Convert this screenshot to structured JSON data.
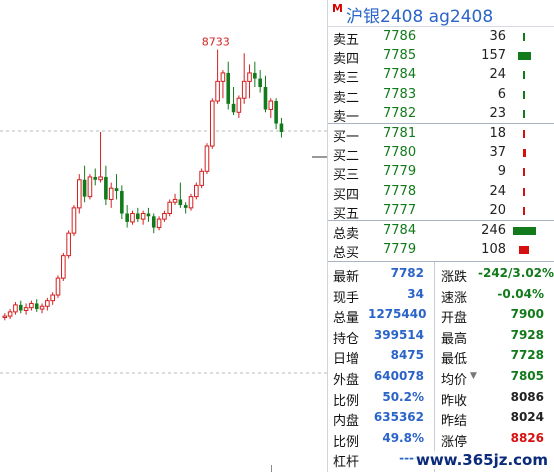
{
  "chart": {
    "high_label": "8733",
    "bull_color": "#d42020",
    "bear_color": "#127a1b",
    "grid_color": "#b8b8b8",
    "candles": [
      {
        "o": 7780,
        "h": 7795,
        "l": 7770,
        "c": 7785
      },
      {
        "o": 7785,
        "h": 7810,
        "l": 7775,
        "c": 7800
      },
      {
        "o": 7800,
        "h": 7835,
        "l": 7790,
        "c": 7825
      },
      {
        "o": 7825,
        "h": 7840,
        "l": 7795,
        "c": 7805
      },
      {
        "o": 7805,
        "h": 7830,
        "l": 7790,
        "c": 7815
      },
      {
        "o": 7815,
        "h": 7840,
        "l": 7805,
        "c": 7830
      },
      {
        "o": 7830,
        "h": 7845,
        "l": 7800,
        "c": 7810
      },
      {
        "o": 7810,
        "h": 7830,
        "l": 7795,
        "c": 7820
      },
      {
        "o": 7820,
        "h": 7850,
        "l": 7805,
        "c": 7840
      },
      {
        "o": 7840,
        "h": 7870,
        "l": 7825,
        "c": 7860
      },
      {
        "o": 7860,
        "h": 7930,
        "l": 7850,
        "c": 7920
      },
      {
        "o": 7920,
        "h": 8010,
        "l": 7910,
        "c": 8000
      },
      {
        "o": 8000,
        "h": 8090,
        "l": 7990,
        "c": 8080
      },
      {
        "o": 8080,
        "h": 8180,
        "l": 8070,
        "c": 8170
      },
      {
        "o": 8170,
        "h": 8290,
        "l": 8150,
        "c": 8270
      },
      {
        "o": 8270,
        "h": 8320,
        "l": 8190,
        "c": 8210
      },
      {
        "o": 8210,
        "h": 8290,
        "l": 8200,
        "c": 8280
      },
      {
        "o": 8280,
        "h": 8310,
        "l": 8250,
        "c": 8270
      },
      {
        "o": 8270,
        "h": 8440,
        "l": 8260,
        "c": 8280
      },
      {
        "o": 8280,
        "h": 8320,
        "l": 8180,
        "c": 8200
      },
      {
        "o": 8200,
        "h": 8260,
        "l": 8170,
        "c": 8240
      },
      {
        "o": 8240,
        "h": 8290,
        "l": 8200,
        "c": 8230
      },
      {
        "o": 8230,
        "h": 8250,
        "l": 8130,
        "c": 8150
      },
      {
        "o": 8150,
        "h": 8180,
        "l": 8100,
        "c": 8120
      },
      {
        "o": 8120,
        "h": 8160,
        "l": 8110,
        "c": 8150
      },
      {
        "o": 8150,
        "h": 8170,
        "l": 8120,
        "c": 8130
      },
      {
        "o": 8130,
        "h": 8160,
        "l": 8110,
        "c": 8150
      },
      {
        "o": 8150,
        "h": 8170,
        "l": 8120,
        "c": 8140
      },
      {
        "o": 8140,
        "h": 8150,
        "l": 8080,
        "c": 8100
      },
      {
        "o": 8100,
        "h": 8140,
        "l": 8090,
        "c": 8130
      },
      {
        "o": 8130,
        "h": 8160,
        "l": 8120,
        "c": 8150
      },
      {
        "o": 8150,
        "h": 8200,
        "l": 8140,
        "c": 8190
      },
      {
        "o": 8190,
        "h": 8220,
        "l": 8180,
        "c": 8200
      },
      {
        "o": 8200,
        "h": 8260,
        "l": 8170,
        "c": 8180
      },
      {
        "o": 8180,
        "h": 8190,
        "l": 8150,
        "c": 8170
      },
      {
        "o": 8170,
        "h": 8220,
        "l": 8160,
        "c": 8210
      },
      {
        "o": 8210,
        "h": 8260,
        "l": 8200,
        "c": 8250
      },
      {
        "o": 8250,
        "h": 8310,
        "l": 8240,
        "c": 8300
      },
      {
        "o": 8300,
        "h": 8400,
        "l": 8290,
        "c": 8390
      },
      {
        "o": 8390,
        "h": 8560,
        "l": 8380,
        "c": 8550
      },
      {
        "o": 8550,
        "h": 8733,
        "l": 8540,
        "c": 8620
      },
      {
        "o": 8620,
        "h": 8660,
        "l": 8560,
        "c": 8650
      },
      {
        "o": 8650,
        "h": 8690,
        "l": 8520,
        "c": 8540
      },
      {
        "o": 8540,
        "h": 8600,
        "l": 8500,
        "c": 8510
      },
      {
        "o": 8510,
        "h": 8570,
        "l": 8490,
        "c": 8560
      },
      {
        "o": 8560,
        "h": 8720,
        "l": 8540,
        "c": 8620
      },
      {
        "o": 8620,
        "h": 8680,
        "l": 8560,
        "c": 8650
      },
      {
        "o": 8650,
        "h": 8690,
        "l": 8600,
        "c": 8630
      },
      {
        "o": 8630,
        "h": 8660,
        "l": 8580,
        "c": 8600
      },
      {
        "o": 8600,
        "h": 8640,
        "l": 8510,
        "c": 8520
      },
      {
        "o": 8520,
        "h": 8560,
        "l": 8490,
        "c": 8550
      },
      {
        "o": 8550,
        "h": 8560,
        "l": 8450,
        "c": 8470
      },
      {
        "o": 8470,
        "h": 8490,
        "l": 8420,
        "c": 8440
      }
    ]
  },
  "title": {
    "badge": "M",
    "text": "沪银2408  ag2408"
  },
  "orderbook": {
    "asks": [
      {
        "label": "卖五",
        "price": "7786",
        "vol": "36",
        "bar": 0.1,
        "color": "#127a1b"
      },
      {
        "label": "卖四",
        "price": "7785",
        "vol": "157",
        "bar": 0.55,
        "color": "#127a1b"
      },
      {
        "label": "卖三",
        "price": "7784",
        "vol": "24",
        "bar": 0.06,
        "color": "#127a1b"
      },
      {
        "label": "卖二",
        "price": "7783",
        "vol": "6",
        "bar": 0.02,
        "color": "#127a1b"
      },
      {
        "label": "卖一",
        "price": "7782",
        "vol": "23",
        "bar": 0.06,
        "color": "#127a1b"
      }
    ],
    "bids": [
      {
        "label": "买一",
        "price": "7781",
        "vol": "18",
        "bar": 0.05,
        "color": "#d61010"
      },
      {
        "label": "买二",
        "price": "7780",
        "vol": "37",
        "bar": 0.11,
        "color": "#d61010"
      },
      {
        "label": "买三",
        "price": "7779",
        "vol": "9",
        "bar": 0.02,
        "color": "#d61010"
      },
      {
        "label": "买四",
        "price": "7778",
        "vol": "24",
        "bar": 0.06,
        "color": "#d61010"
      },
      {
        "label": "买五",
        "price": "7777",
        "vol": "20",
        "bar": 0.05,
        "color": "#d61010"
      }
    ],
    "totals": [
      {
        "label": "总卖",
        "price": "7784",
        "vol": "246",
        "bar": 0.95,
        "color": "#127a1b"
      },
      {
        "label": "总买",
        "price": "7779",
        "vol": "108",
        "bar": 0.4,
        "color": "#d61010"
      }
    ]
  },
  "quote": {
    "left": [
      {
        "label": "最新",
        "value": "7782"
      },
      {
        "label": "现手",
        "value": "34"
      },
      {
        "label": "总量",
        "value": "1275440"
      },
      {
        "label": "持仓",
        "value": "399514"
      },
      {
        "label": "日增",
        "value": "8475"
      },
      {
        "label": "外盘",
        "value": "640078"
      },
      {
        "label": "比例",
        "value": "50.2%"
      },
      {
        "label": "内盘",
        "value": "635362"
      },
      {
        "label": "比例",
        "value": "49.8%"
      },
      {
        "label": "杠杆",
        "value": "-----"
      }
    ],
    "right": [
      {
        "label": "涨跌",
        "value": "-242/3.02%",
        "tone": "green"
      },
      {
        "label": "速涨",
        "value": "-0.04%",
        "tone": "green"
      },
      {
        "label": "开盘",
        "value": "7900",
        "tone": "green"
      },
      {
        "label": "最高",
        "value": "7928",
        "tone": "green"
      },
      {
        "label": "最低",
        "value": "7728",
        "tone": "green"
      },
      {
        "label": "均价",
        "value": "7805",
        "tone": "green",
        "arrow": "▼"
      },
      {
        "label": "昨收",
        "value": "8086",
        "tone": "dark"
      },
      {
        "label": "昨结",
        "value": "8024",
        "tone": "dark"
      },
      {
        "label": "涨停",
        "value": "8826",
        "tone": "red"
      }
    ]
  },
  "watermark": "www.365jz.com"
}
